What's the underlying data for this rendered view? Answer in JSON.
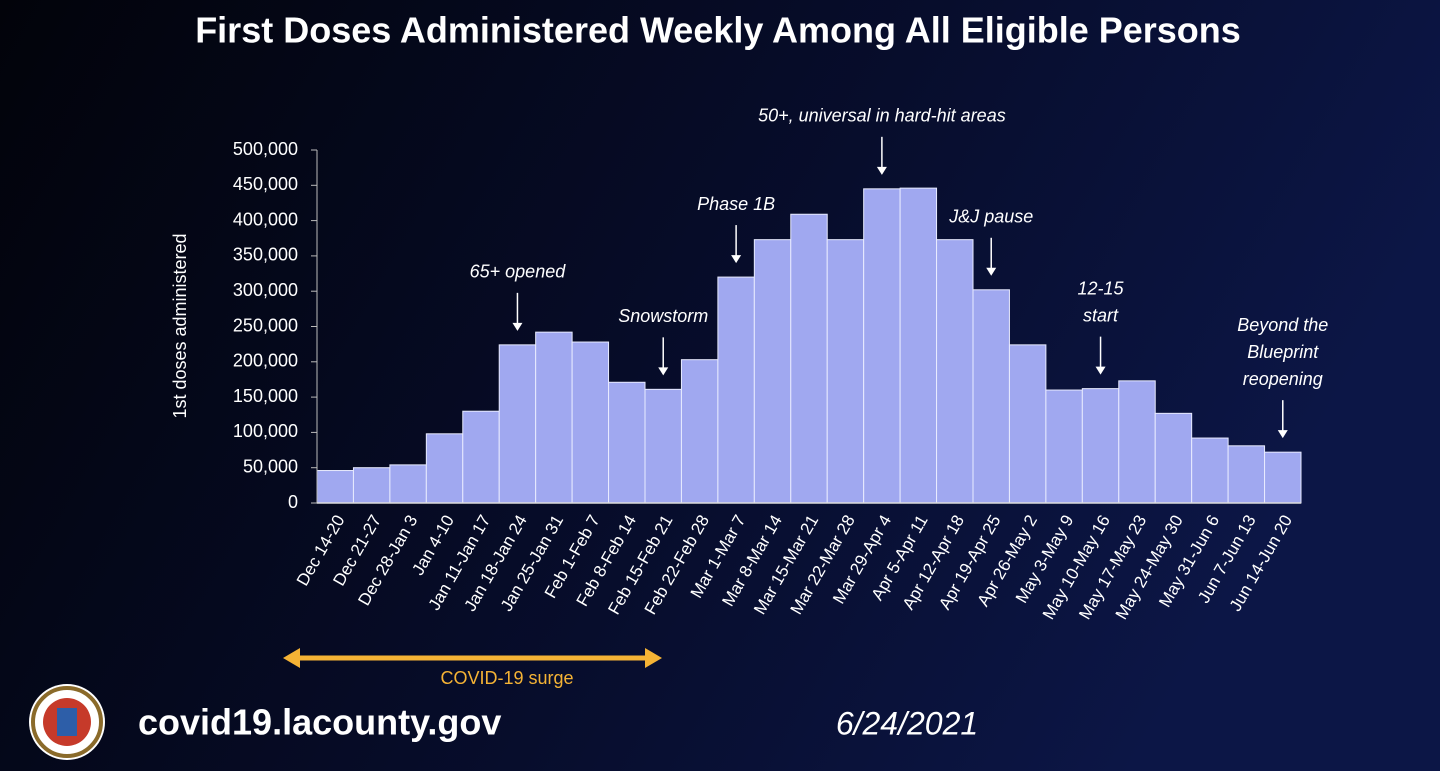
{
  "chart_data": {
    "type": "bar",
    "title": "First Doses Administered Weekly Among All Eligible Persons",
    "ylabel": "1st doses administered",
    "categories": [
      "Dec 14-20",
      "Dec 21-27",
      "Dec 28-Jan 3",
      "Jan 4-10",
      "Jan 11-Jan 17",
      "Jan 18-Jan 24",
      "Jan 25-Jan 31",
      "Feb 1-Feb 7",
      "Feb 8-Feb 14",
      "Feb 15-Feb 21",
      "Feb 22-Feb 28",
      "Mar 1-Mar 7",
      "Mar 8-Mar 14",
      "Mar 15-Mar 21",
      "Mar 22-Mar 28",
      "Mar 29-Apr 4",
      "Apr 5-Apr 11",
      "Apr 12-Apr 18",
      "Apr 19-Apr 25",
      "Apr 26-May 2",
      "May 3-May 9",
      "May 10-May 16",
      "May 17-May 23",
      "May 24-May 30",
      "May 31-Jun 6",
      "Jun 7-Jun 13",
      "Jun 14-Jun 20"
    ],
    "values": [
      46000,
      50000,
      54000,
      98000,
      130000,
      224000,
      242000,
      228000,
      171000,
      161000,
      203000,
      320000,
      373000,
      409000,
      373000,
      445000,
      446000,
      373000,
      302000,
      224000,
      160000,
      162000,
      173000,
      127000,
      92000,
      81000,
      72000
    ],
    "color": "#a0a8f0",
    "ylim": [
      0,
      500000
    ],
    "yticks": [
      0,
      {
        "value": 50000,
        "label": "50,000"
      },
      {
        "value": 100000,
        "label": "100,000"
      },
      {
        "value": 150000,
        "label": "150,000"
      },
      {
        "value": 200000,
        "label": "200,000"
      },
      {
        "value": 250000,
        "label": "250,000"
      },
      {
        "value": 300000,
        "label": "300,000"
      },
      {
        "value": 350000,
        "label": "350,000"
      },
      {
        "value": 400000,
        "label": "400,000"
      },
      {
        "value": 450000,
        "label": "450,000"
      },
      {
        "value": 500000,
        "label": "500,000"
      }
    ],
    "annotations": [
      {
        "lines": [
          "65+ opened"
        ],
        "category": "Jan 18-Jan 24"
      },
      {
        "lines": [
          "Snowstorm"
        ],
        "category": "Feb 15-Feb 21"
      },
      {
        "lines": [
          "Phase 1B"
        ],
        "category": "Mar 1-Mar 7"
      },
      {
        "lines": [
          "50+, universal in hard-hit areas"
        ],
        "category": "Mar 29-Apr 4"
      },
      {
        "lines": [
          "J&J pause"
        ],
        "category": "Apr 19-Apr 25"
      },
      {
        "lines": [
          "12-15",
          "start"
        ],
        "category": "May 10-May 16"
      },
      {
        "lines": [
          "Beyond the",
          "Blueprint",
          "reopening"
        ],
        "category": "Jun 14-Jun 20"
      }
    ],
    "surge_label": "COVID-19 surge"
  },
  "footer": {
    "url": "covid19.lacounty.gov",
    "date": "6/24/2021"
  }
}
